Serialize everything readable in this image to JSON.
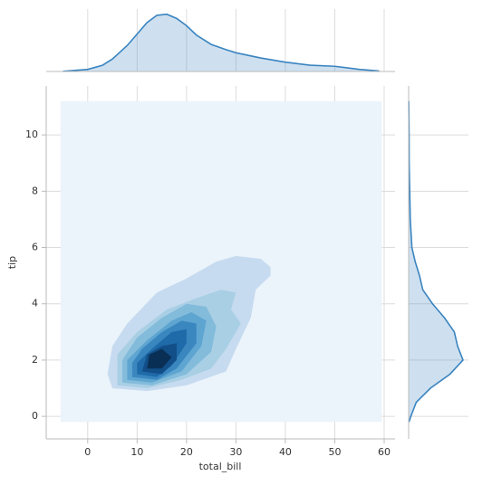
{
  "chart_data": {
    "type": "kde",
    "x_label": "total_bill",
    "y_label": "tip",
    "xlim": [
      -8.4,
      62.2
    ],
    "ylim": [
      -0.8,
      11.74
    ],
    "xticks": [
      0,
      10,
      20,
      30,
      40,
      50,
      60
    ],
    "yticks": [
      0,
      2,
      4,
      6,
      8,
      10
    ],
    "grid": true,
    "support": {
      "x": [
        -5.5,
        59.5
      ],
      "y": [
        -0.2,
        11.2
      ],
      "color": "#ebf3fb"
    },
    "contours": [
      {
        "color": "#c6dbef",
        "points": [
          [
            5,
            1.0
          ],
          [
            12,
            0.9
          ],
          [
            20,
            1.1
          ],
          [
            28,
            1.6
          ],
          [
            30,
            2.4
          ],
          [
            33,
            3.5
          ],
          [
            34,
            4.5
          ],
          [
            37,
            5.0
          ],
          [
            37,
            5.3
          ],
          [
            35,
            5.6
          ],
          [
            30,
            5.7
          ],
          [
            26,
            5.5
          ],
          [
            20,
            4.9
          ],
          [
            14,
            4.4
          ],
          [
            8,
            3.3
          ],
          [
            5,
            2.5
          ],
          [
            4,
            1.5
          ]
        ]
      },
      {
        "color": "#a9cfe5",
        "points": [
          [
            6,
            1.1
          ],
          [
            12,
            1.0
          ],
          [
            19,
            1.3
          ],
          [
            25,
            1.7
          ],
          [
            28,
            2.4
          ],
          [
            31,
            3.3
          ],
          [
            29,
            3.8
          ],
          [
            30,
            4.4
          ],
          [
            27,
            4.5
          ],
          [
            22,
            4.2
          ],
          [
            16,
            3.8
          ],
          [
            10,
            3.0
          ],
          [
            6,
            2.2
          ]
        ]
      },
      {
        "color": "#83bbdb",
        "points": [
          [
            7,
            1.2
          ],
          [
            13,
            1.1
          ],
          [
            20,
            1.5
          ],
          [
            25,
            2.3
          ],
          [
            26,
            3.2
          ],
          [
            24,
            3.9
          ],
          [
            20,
            4.0
          ],
          [
            15,
            3.5
          ],
          [
            10,
            2.8
          ],
          [
            7,
            2.0
          ]
        ]
      },
      {
        "color": "#5ea5d1",
        "points": [
          [
            8,
            1.3
          ],
          [
            13,
            1.2
          ],
          [
            19,
            1.6
          ],
          [
            23,
            2.5
          ],
          [
            24,
            3.4
          ],
          [
            21,
            3.7
          ],
          [
            17,
            3.4
          ],
          [
            12,
            2.7
          ],
          [
            8,
            2.0
          ]
        ]
      },
      {
        "color": "#3a87c0",
        "points": [
          [
            9,
            1.4
          ],
          [
            14,
            1.3
          ],
          [
            18,
            1.7
          ],
          [
            22,
            2.6
          ],
          [
            22,
            3.3
          ],
          [
            19,
            3.4
          ],
          [
            15,
            3.0
          ],
          [
            11,
            2.4
          ],
          [
            9,
            1.9
          ]
        ]
      },
      {
        "color": "#1f6aa8",
        "points": [
          [
            10,
            1.5
          ],
          [
            14,
            1.4
          ],
          [
            17,
            1.8
          ],
          [
            20,
            2.6
          ],
          [
            20,
            3.1
          ],
          [
            17,
            3.0
          ],
          [
            13,
            2.4
          ],
          [
            10,
            1.9
          ]
        ]
      },
      {
        "color": "#124f88",
        "points": [
          [
            11,
            1.6
          ],
          [
            15,
            1.5
          ],
          [
            18,
            2.0
          ],
          [
            18,
            2.6
          ],
          [
            15,
            2.5
          ],
          [
            12,
            2.2
          ]
        ]
      },
      {
        "color": "#0a2f55",
        "points": [
          [
            12,
            1.7
          ],
          [
            15,
            1.7
          ],
          [
            17,
            2.1
          ],
          [
            15,
            2.4
          ],
          [
            12.5,
            2.2
          ]
        ]
      }
    ],
    "marginal_color": "#3a84c0",
    "marginal_x": {
      "x": [
        -5,
        0,
        3,
        5,
        8,
        10,
        12,
        14,
        16,
        18,
        20,
        22,
        25,
        28,
        30,
        35,
        40,
        45,
        50,
        55,
        59
      ],
      "values": [
        0.0002,
        0.002,
        0.006,
        0.012,
        0.025,
        0.036,
        0.047,
        0.054,
        0.055,
        0.051,
        0.044,
        0.035,
        0.026,
        0.021,
        0.018,
        0.013,
        0.009,
        0.006,
        0.005,
        0.002,
        0.0005
      ],
      "lim": [
        0,
        0.06
      ]
    },
    "marginal_y": {
      "y": [
        -0.2,
        0,
        0.5,
        1,
        1.5,
        2,
        2.5,
        3,
        3.5,
        4,
        4.5,
        5,
        5.5,
        6,
        7,
        8,
        9,
        10,
        11.2
      ],
      "values": [
        0.003,
        0.02,
        0.07,
        0.2,
        0.38,
        0.5,
        0.45,
        0.42,
        0.33,
        0.22,
        0.13,
        0.1,
        0.06,
        0.03,
        0.015,
        0.01,
        0.005,
        0.004,
        0.001
      ],
      "lim": [
        0,
        0.55
      ]
    }
  }
}
